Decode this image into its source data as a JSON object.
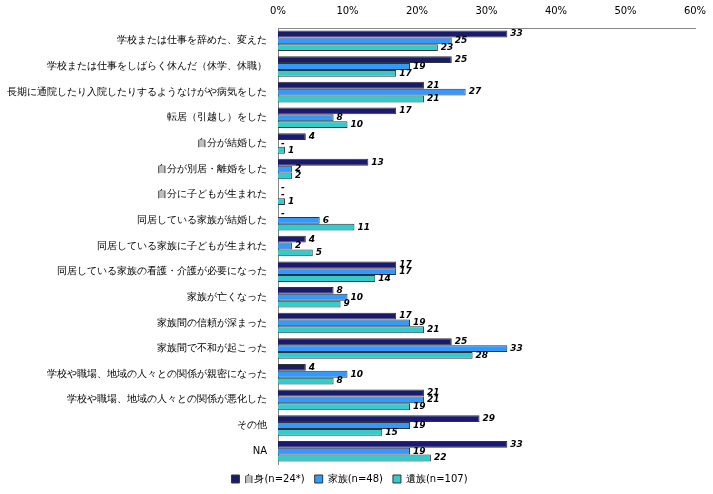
{
  "chart_data": {
    "type": "bar",
    "orientation": "horizontal",
    "categories": [
      "学校または仕事を辞めた、変えた",
      "学校または仕事をしばらく休んだ（休学、休職）",
      "長期に通院したり入院したりするようなけがや病気をした",
      "転居（引越し）をした",
      "自分が結婚した",
      "自分が別居・離婚をした",
      "自分に子どもが生まれた",
      "同居している家族が結婚した",
      "同居している家族に子どもが生まれた",
      "同居している家族の看護・介護が必要になった",
      "家族が亡くなった",
      "家族間の信頼が深まった",
      "家族間で不和が起こった",
      "学校や職場、地域の人々との関係が親密になった",
      "学校や職場、地域の人々との関係が悪化した",
      "その他",
      "NA"
    ],
    "series": [
      {
        "name": "自身(n=24*)",
        "color": "#1a1a6e",
        "values": [
          33,
          25,
          21,
          17,
          4,
          13,
          0,
          0,
          4,
          17,
          8,
          17,
          25,
          4,
          21,
          29,
          33
        ],
        "value_labels": [
          "33",
          "25",
          "21",
          "17",
          "4",
          "13",
          "-",
          "-",
          "4",
          "17",
          "8",
          "17",
          "25",
          "4",
          "21",
          "29",
          "33"
        ]
      },
      {
        "name": "家族(n=48)",
        "color": "#3399ff",
        "values": [
          25,
          19,
          27,
          8,
          0,
          2,
          0,
          6,
          2,
          17,
          10,
          19,
          33,
          10,
          21,
          19,
          19
        ],
        "value_labels": [
          "25",
          "19",
          "27",
          "8",
          "-",
          "2",
          "-",
          "6",
          "2",
          "17",
          "10",
          "19",
          "33",
          "10",
          "21",
          "19",
          "19"
        ]
      },
      {
        "name": "遺族(n=107)",
        "color": "#33cccc",
        "values": [
          23,
          17,
          21,
          10,
          1,
          2,
          1,
          11,
          5,
          14,
          9,
          21,
          28,
          8,
          19,
          15,
          22
        ],
        "value_labels": [
          "23",
          "17",
          "21",
          "10",
          "1",
          "2",
          "1",
          "11",
          "5",
          "14",
          "9",
          "21",
          "28",
          "8",
          "19",
          "15",
          "22"
        ]
      }
    ],
    "xlim": [
      0,
      60
    ],
    "xticks": [
      {
        "value": 0,
        "label": "0%"
      },
      {
        "value": 10,
        "label": "10%"
      },
      {
        "value": 20,
        "label": "20%"
      },
      {
        "value": 30,
        "label": "30%"
      },
      {
        "value": 40,
        "label": "40%"
      },
      {
        "value": 50,
        "label": "50%"
      },
      {
        "value": 60,
        "label": "60%"
      }
    ],
    "grid": false,
    "legend": "bottom",
    "data_labels": true
  }
}
